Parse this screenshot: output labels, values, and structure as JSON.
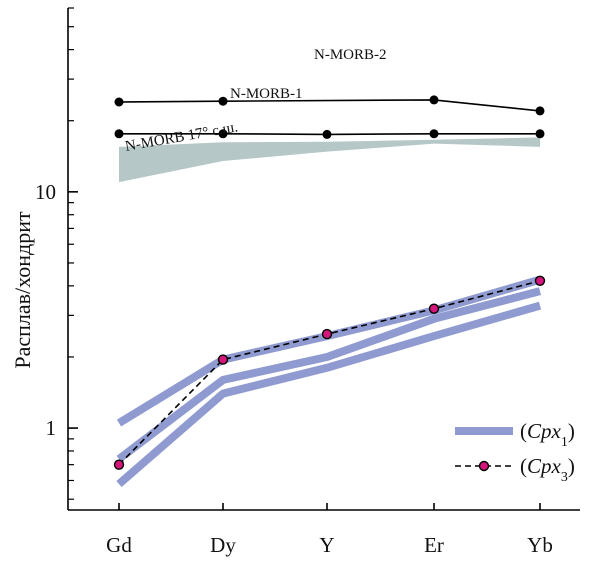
{
  "chart_data": {
    "type": "line",
    "scale": "log",
    "ylabel": "Расплав/хондрит",
    "xlabel": "",
    "categories": [
      "Gd",
      "Dy",
      "Y",
      "Er",
      "Yb"
    ],
    "ylim": [
      0.45,
      60
    ],
    "yticks": [
      {
        "value": 1,
        "label": "1"
      },
      {
        "value": 10,
        "label": "10"
      }
    ],
    "grid": false,
    "legend_position": "bottom-right",
    "band": {
      "label": "N-MORB 17° с.ш.",
      "color": "#b5c7c7",
      "upper": [
        15.5,
        16.2,
        16.3,
        16.6,
        17.0
      ],
      "lower": [
        11.0,
        13.5,
        14.8,
        16.0,
        15.5
      ]
    },
    "reference_lines": [
      {
        "label": "N-MORB-2",
        "values": [
          24.0,
          24.2,
          null,
          24.5,
          22.0
        ],
        "color": "#000000"
      },
      {
        "label": "N-MORB-1",
        "values": [
          17.6,
          17.6,
          17.5,
          17.6,
          17.6
        ],
        "color": "#000000"
      }
    ],
    "series": [
      {
        "name": "(Cpx1)",
        "kind": "thick",
        "color": "#8f9bd0",
        "values": [
          1.05,
          1.95,
          2.45,
          3.15,
          4.25
        ]
      },
      {
        "name": "",
        "kind": "thick",
        "color": "#8f9bd0",
        "values": [
          0.74,
          1.6,
          2.0,
          2.9,
          3.8
        ]
      },
      {
        "name": "",
        "kind": "thick",
        "color": "#8f9bd0",
        "values": [
          0.58,
          1.4,
          1.8,
          2.45,
          3.3
        ]
      },
      {
        "name": "(Cpx3)",
        "kind": "dashed",
        "color": "#000000",
        "marker_color": "#d4157a",
        "values": [
          0.7,
          1.95,
          2.5,
          3.2,
          4.2
        ]
      }
    ]
  }
}
